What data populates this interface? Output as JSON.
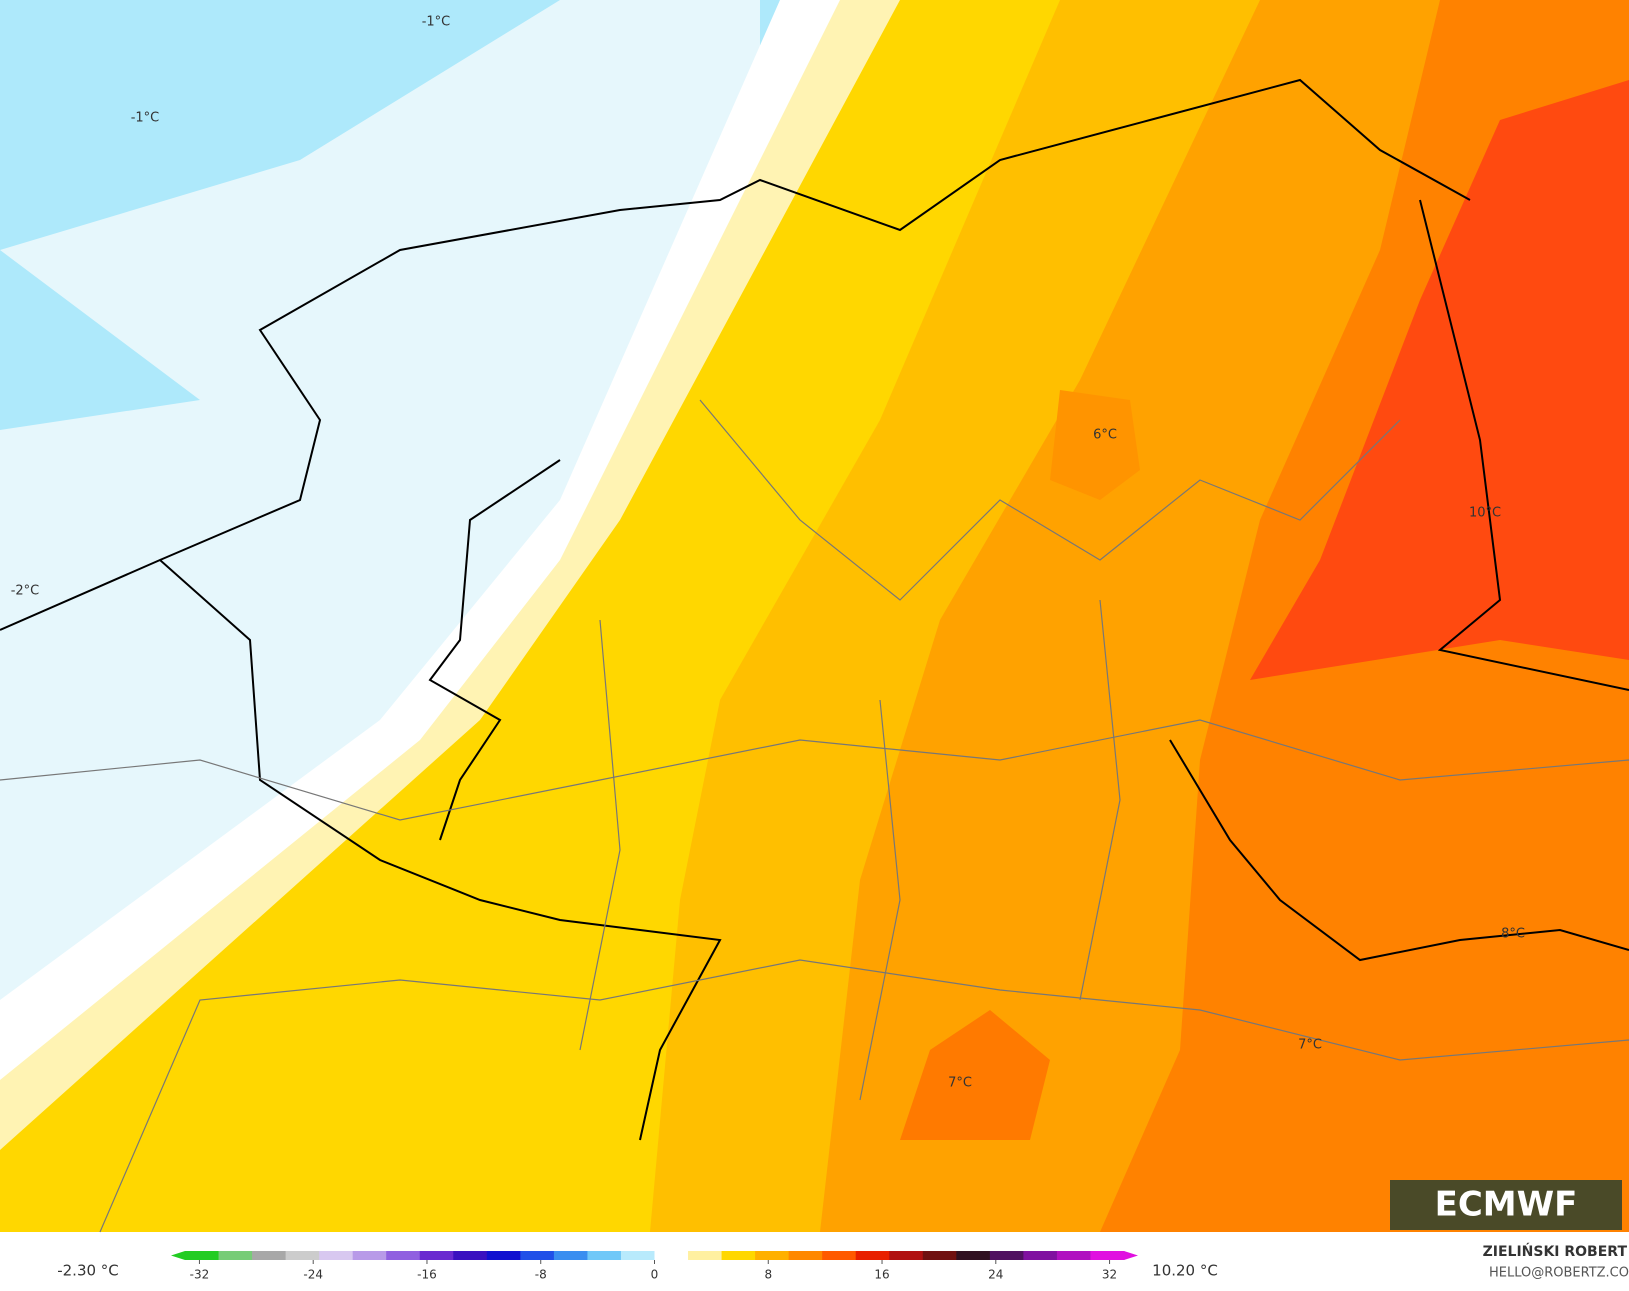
{
  "map": {
    "labels": [
      "-1°C",
      "-1°C",
      "-2°C",
      "6°C",
      "10°C",
      "8°C",
      "7°C",
      "7°C"
    ]
  },
  "colorbar": {
    "min_label": "-2.30 °C",
    "max_label": "10.20 °C",
    "range": [
      -34,
      34
    ],
    "ticks": [
      -32,
      -24,
      -16,
      -8,
      0,
      8,
      16,
      24,
      32
    ],
    "colors": [
      "#22cc22",
      "#77cc77",
      "#a8a8a8",
      "#cccccc",
      "#d8c8f0",
      "#b89ae8",
      "#9060e0",
      "#6a2ad0",
      "#3a10c0",
      "#1010d0",
      "#2050e8",
      "#3a8ef0",
      "#70c8f8",
      "#b8eafc",
      "#ffffff",
      "#fff0a0",
      "#ffd700",
      "#ffb000",
      "#ff8800",
      "#ff5a00",
      "#e82000",
      "#b01010",
      "#701010",
      "#301020",
      "#501060",
      "#8010a0",
      "#b010c0",
      "#e010e0"
    ]
  },
  "logo": "ECMWF",
  "author": {
    "name": "ZIELIŃSKI ROBERT",
    "email": "HELLO@ROBERTZ.CO"
  }
}
